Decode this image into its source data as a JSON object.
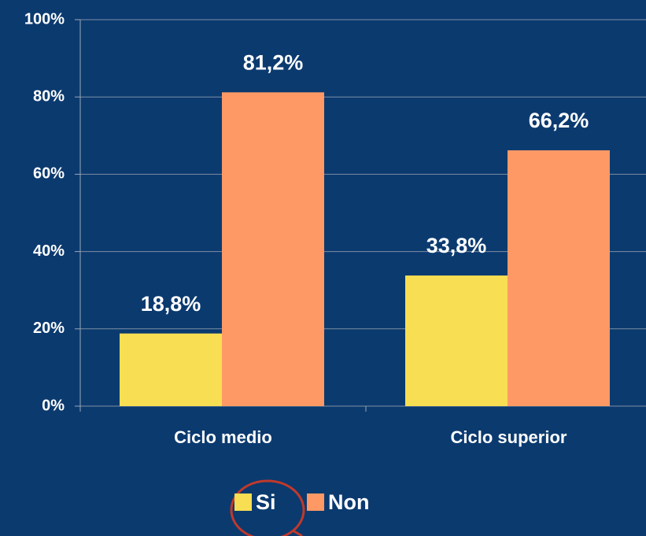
{
  "chart_data": {
    "type": "bar",
    "categories": [
      "Ciclo medio",
      "Ciclo superior"
    ],
    "series": [
      {
        "name": "Si",
        "color": "#f8de52",
        "values": [
          18.8,
          33.8
        ],
        "value_labels": [
          "18,8%",
          "33,8%"
        ]
      },
      {
        "name": "Non",
        "color": "#fe9966",
        "values": [
          81.2,
          66.2
        ],
        "value_labels": [
          "81,2%",
          "66,2%"
        ]
      }
    ],
    "ylim": [
      0,
      100
    ],
    "yticks": [
      {
        "value": 0,
        "label": "0%"
      },
      {
        "value": 20,
        "label": "20%"
      },
      {
        "value": 40,
        "label": "40%"
      },
      {
        "value": 60,
        "label": "60%"
      },
      {
        "value": 80,
        "label": "80%"
      },
      {
        "value": 100,
        "label": "100%"
      }
    ],
    "grid": true,
    "legend": "bottom"
  }
}
